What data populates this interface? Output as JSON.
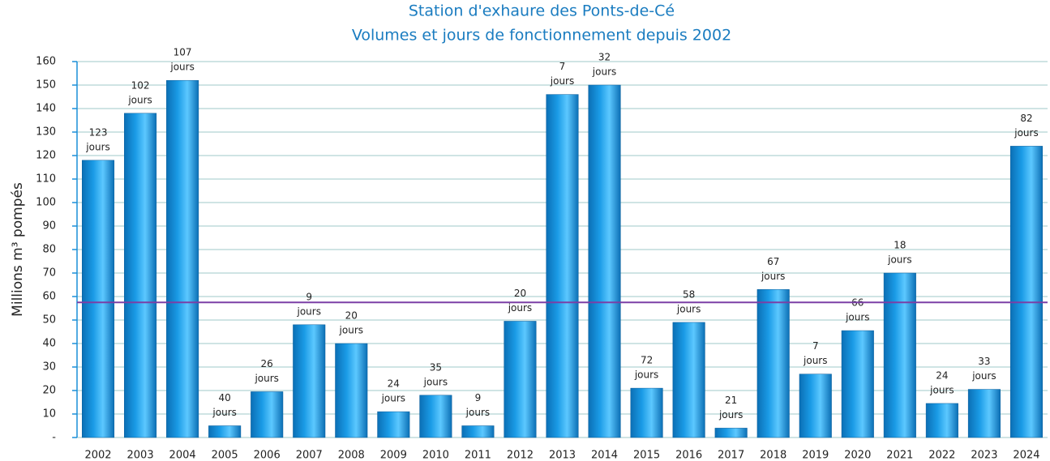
{
  "chart_data": {
    "type": "bar",
    "title": "Station d'exhaure des Ponts-de-Cé",
    "subtitle": "Volumes et jours de fonctionnement depuis 2002",
    "y_label": "Millions m³ pompés",
    "categories": [
      "2002",
      "2003",
      "2004",
      "2005",
      "2006",
      "2007",
      "2008",
      "2009",
      "2010",
      "2011",
      "2012",
      "2013",
      "2014",
      "2015",
      "2016",
      "2017",
      "2018",
      "2019",
      "2020",
      "2021",
      "2022",
      "2023",
      "2024"
    ],
    "values": [
      118,
      138,
      152,
      5,
      19.5,
      48,
      40,
      11,
      18,
      5,
      49.5,
      146,
      150,
      21,
      49,
      4,
      63,
      27,
      45.5,
      70,
      14.5,
      20.5,
      124
    ],
    "days": [
      123,
      102,
      107,
      40,
      26,
      9,
      20,
      24,
      35,
      9,
      20,
      7,
      32,
      72,
      58,
      21,
      67,
      7,
      66,
      18,
      24,
      33,
      82
    ],
    "days_unit": "jours",
    "color": "#1a9be6",
    "reference_line": 57.5,
    "reference_color": "#7b3fa6",
    "ylim": [
      0,
      160
    ],
    "yticks": [
      {
        "value": 0,
        "label": "-"
      },
      10,
      20,
      30,
      40,
      50,
      60,
      70,
      80,
      90,
      100,
      110,
      120,
      130,
      140,
      150,
      160
    ],
    "grid": true
  }
}
